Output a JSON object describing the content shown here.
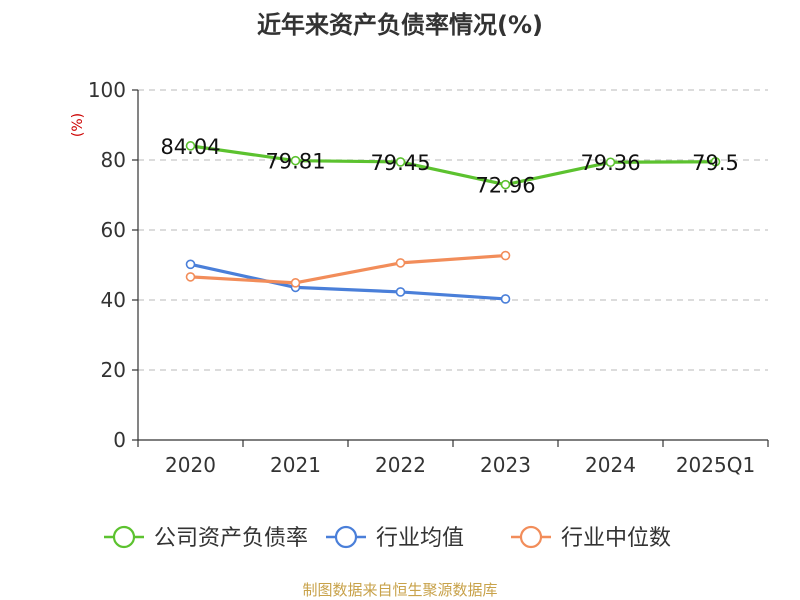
{
  "chart_data": {
    "type": "line",
    "title": "近年来资产负债率情况(%)",
    "ylabel": "(%)",
    "xlabel": "",
    "categories": [
      "2020",
      "2021",
      "2022",
      "2023",
      "2024",
      "2025Q1"
    ],
    "ylim": [
      0,
      100
    ],
    "yticks": [
      0,
      20,
      40,
      60,
      80,
      100
    ],
    "grid": true,
    "legend_position": "bottom",
    "series": [
      {
        "name": "公司资产负债率",
        "color": "#5cc22f",
        "values": [
          84.04,
          79.81,
          79.45,
          72.96,
          79.36,
          79.5
        ],
        "labels": [
          "84.04",
          "79.81",
          "79.45",
          "72.96",
          "79.36",
          "79.5"
        ],
        "show_labels": true
      },
      {
        "name": "行业均值",
        "color": "#4a7fd9",
        "values": [
          50.2,
          43.6,
          42.3,
          40.3,
          null,
          null
        ],
        "show_labels": false
      },
      {
        "name": "行业中位数",
        "color": "#f28d5a",
        "values": [
          46.6,
          44.9,
          50.6,
          52.7,
          null,
          null
        ],
        "show_labels": false
      }
    ],
    "source": "制图数据来自恒生聚源数据库"
  }
}
